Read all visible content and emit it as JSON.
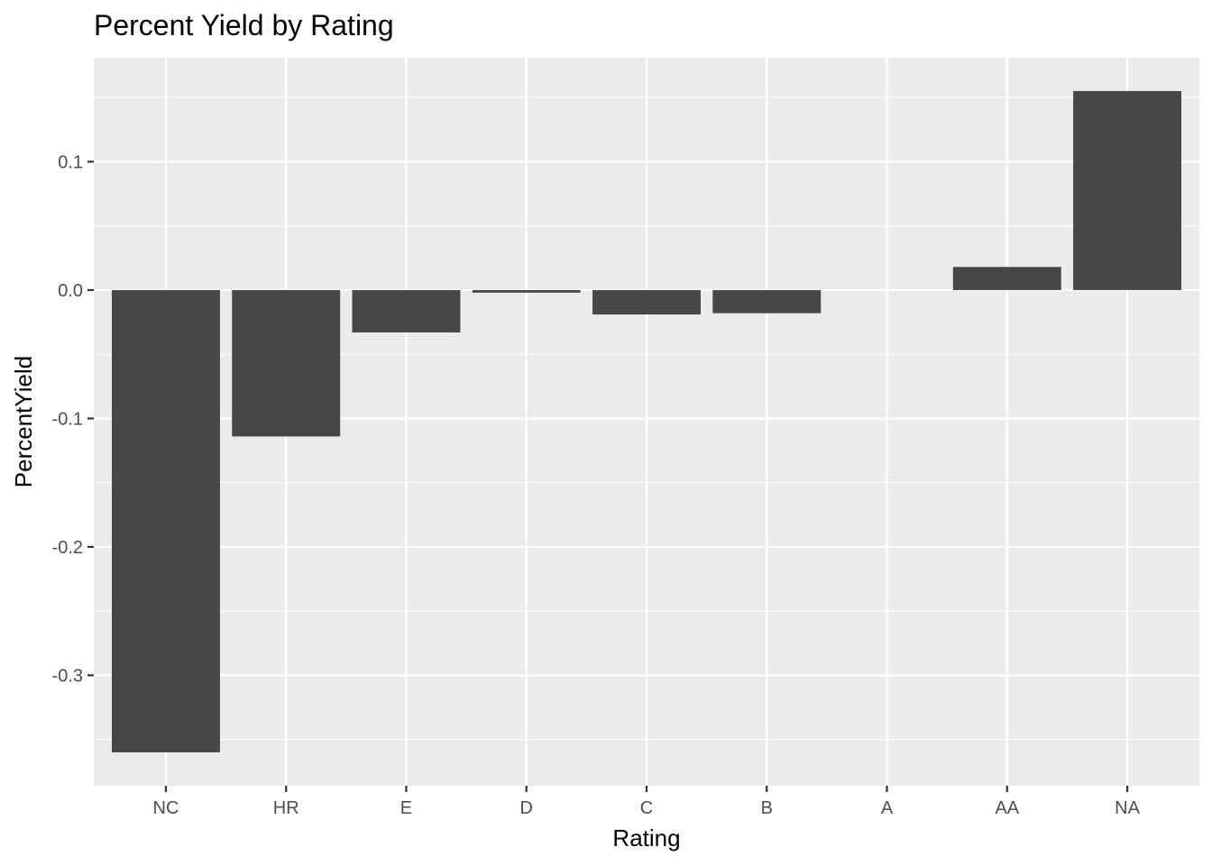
{
  "chart_data": {
    "type": "bar",
    "title": "Percent Yield by Rating",
    "xlabel": "Rating",
    "ylabel": "PercentYield",
    "categories": [
      "NC",
      "HR",
      "E",
      "D",
      "C",
      "B",
      "A",
      "AA",
      "NA"
    ],
    "values": [
      -0.36,
      -0.114,
      -0.033,
      -0.002,
      -0.019,
      -0.018,
      0.0,
      0.018,
      0.155
    ],
    "ylim": [
      -0.386,
      0.181
    ],
    "yticks": [
      0.1,
      0.0,
      -0.1,
      -0.2,
      -0.3
    ],
    "ytick_labels": [
      "0.1",
      "0.0",
      "-0.1",
      "-0.2",
      "-0.3"
    ],
    "grid": true,
    "legend": "none",
    "bar_color": "#474747",
    "panel_color": "#ebebeb"
  }
}
